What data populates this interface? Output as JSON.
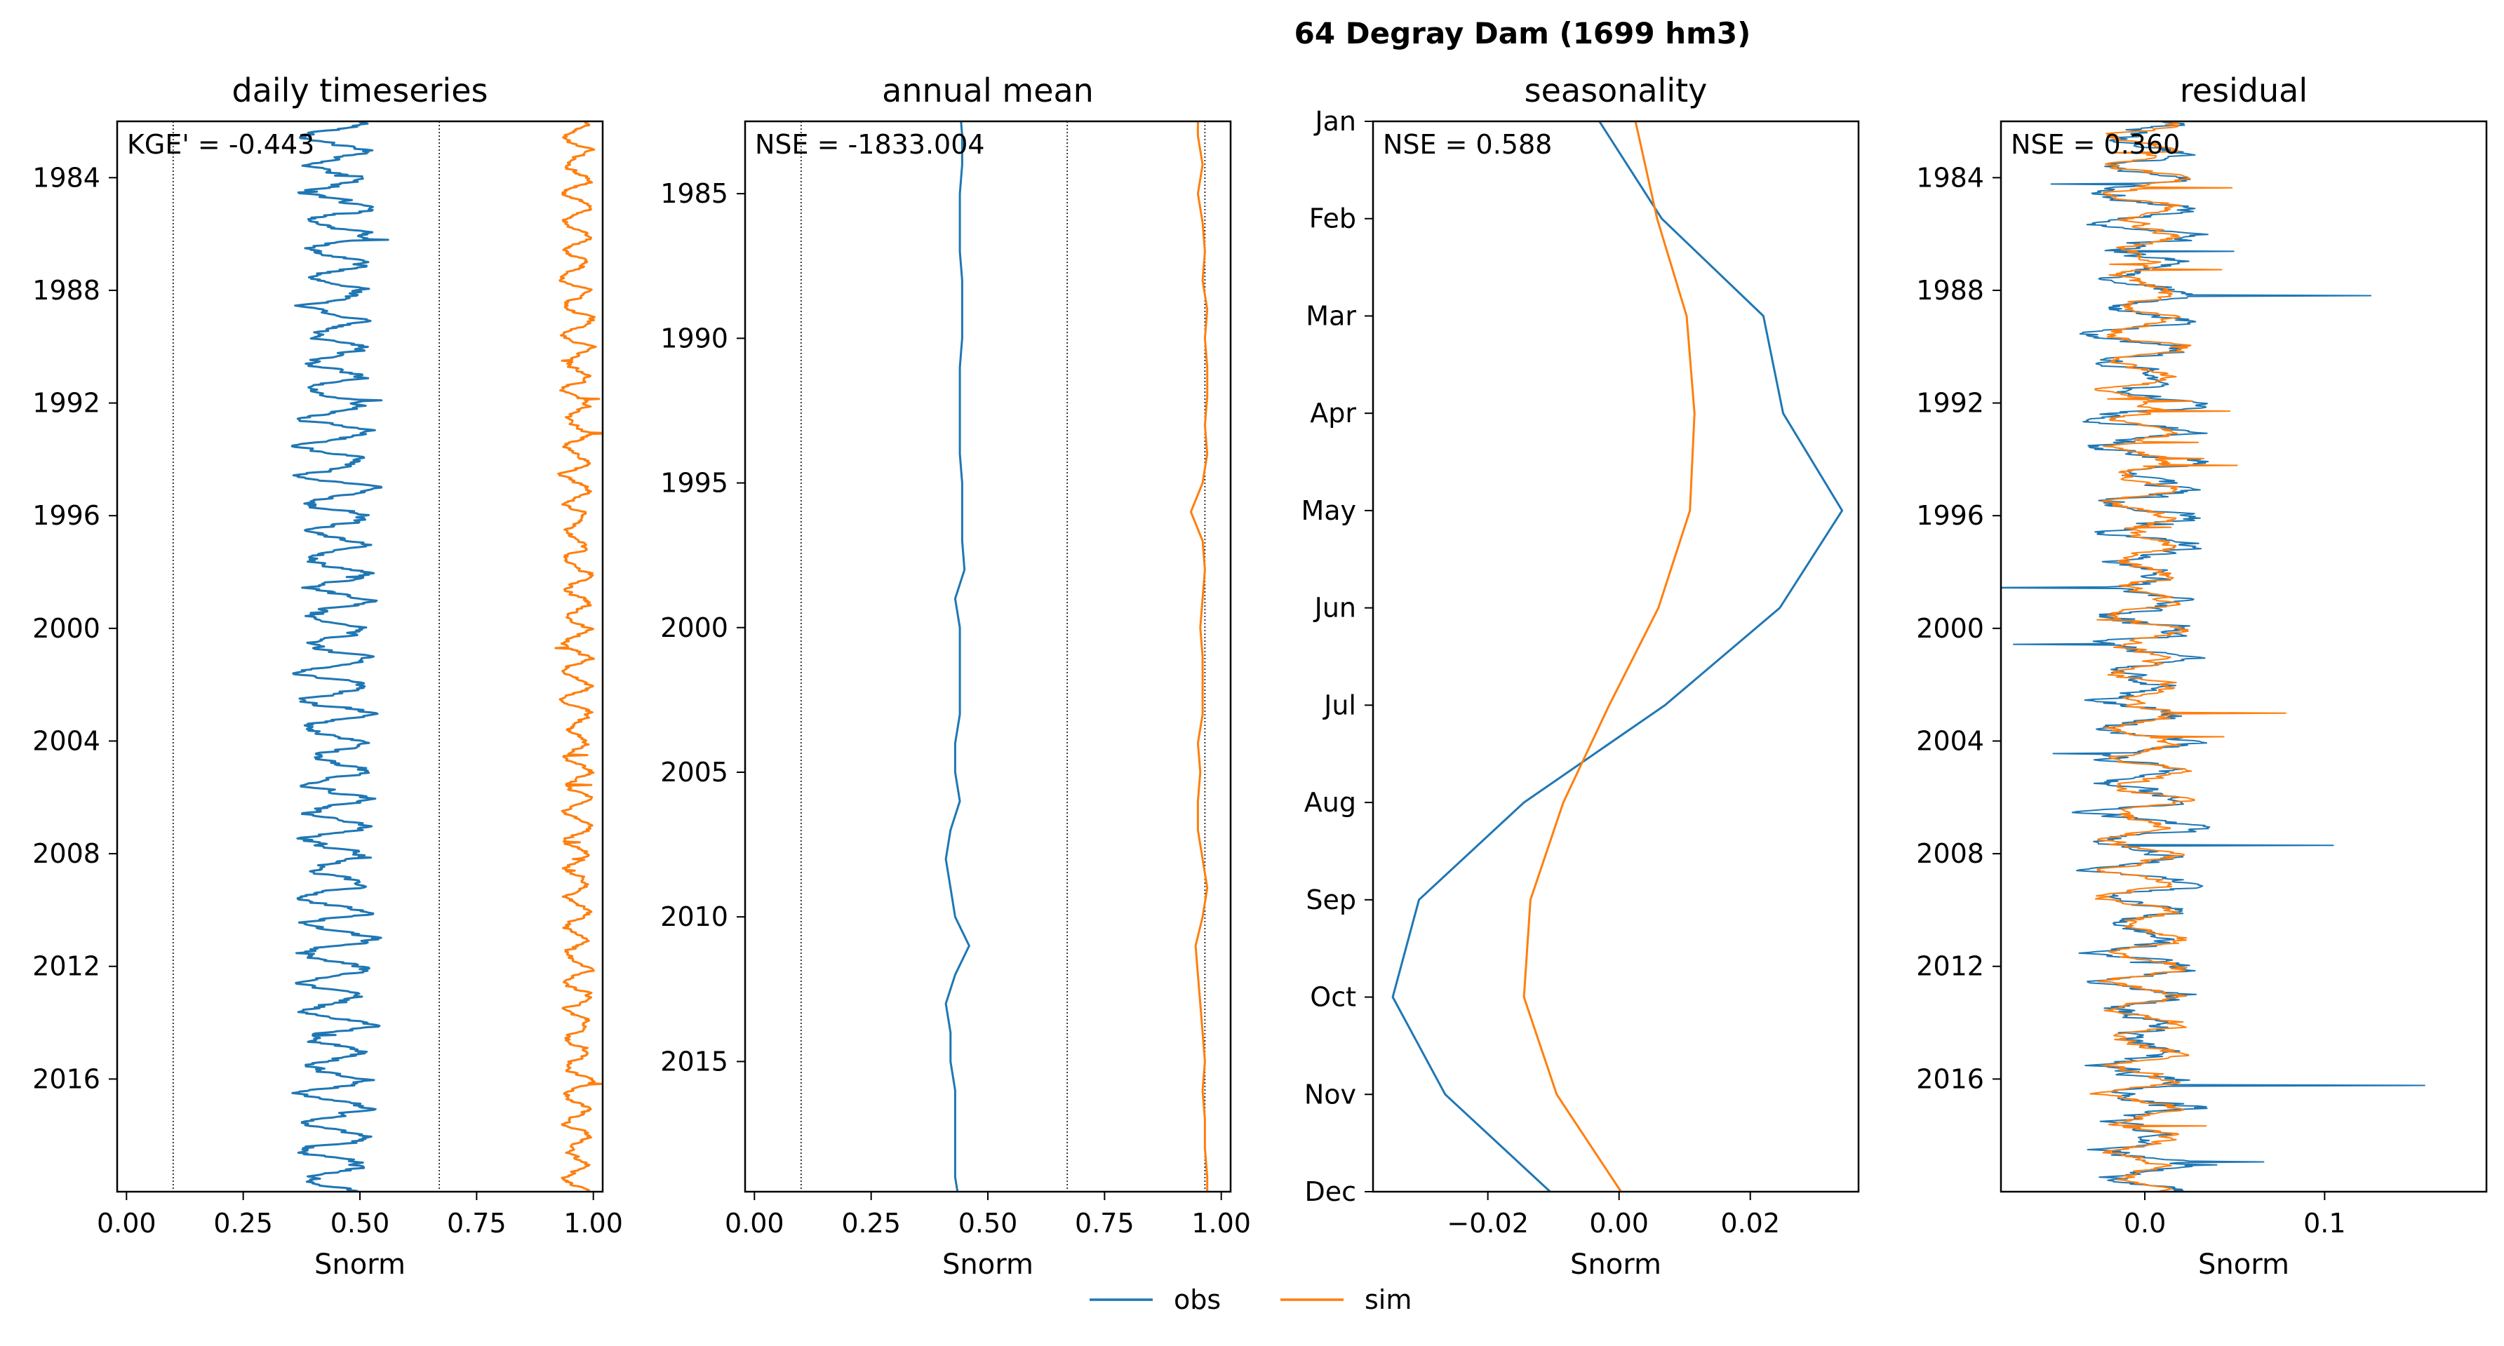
{
  "figure": {
    "suptitle": "64  Degray Dam (1699 hm3)",
    "legend": {
      "placement": "bottom-center",
      "entries": [
        "obs",
        "sim"
      ]
    },
    "colors": {
      "obs": "#1f77b4",
      "sim": "#ff7f0e",
      "reference": "#000000"
    }
  },
  "chart_data": [
    {
      "type": "line",
      "title": "daily timeseries",
      "xlabel": "Snorm",
      "ylabel": "",
      "annotation": "KGE' = -0.443",
      "xlim": [
        -0.02,
        1.02
      ],
      "ylim": [
        2020.0,
        1982.0
      ],
      "xticks": [
        0.0,
        0.25,
        0.5,
        0.75,
        1.0
      ],
      "xtick_labels": [
        "0.00",
        "0.25",
        "0.50",
        "0.75",
        "1.00"
      ],
      "yticks": [
        1984,
        1988,
        1992,
        1996,
        2000,
        2004,
        2008,
        2012,
        2016
      ],
      "ytick_labels": [
        "1984",
        "1988",
        "1992",
        "1996",
        "2000",
        "2004",
        "2008",
        "2012",
        "2016"
      ],
      "reference_lines_x": [
        0.1,
        0.67
      ],
      "grid": false,
      "series": [
        {
          "name": "obs",
          "center": 0.45,
          "amp": 0.06,
          "noise": 0.035,
          "spikes": 0.07
        },
        {
          "name": "sim",
          "center": 0.965,
          "amp": 0.025,
          "noise": 0.015,
          "spikes": 0.05
        }
      ]
    },
    {
      "type": "line",
      "title": "annual mean",
      "xlabel": "Snorm",
      "ylabel": "",
      "annotation": "NSE = -1833.004",
      "xlim": [
        -0.02,
        1.02
      ],
      "ylim": [
        2019.5,
        1982.5
      ],
      "xticks": [
        0.0,
        0.25,
        0.5,
        0.75,
        1.0
      ],
      "xtick_labels": [
        "0.00",
        "0.25",
        "0.50",
        "0.75",
        "1.00"
      ],
      "yticks": [
        1985,
        1990,
        1995,
        2000,
        2005,
        2010,
        2015
      ],
      "ytick_labels": [
        "1985",
        "1990",
        "1995",
        "2000",
        "2005",
        "2010",
        "2015"
      ],
      "reference_lines_x": [
        0.1,
        0.67,
        0.965
      ],
      "grid": false,
      "series": [
        {
          "name": "obs",
          "x": [
            0.44,
            0.445,
            0.445,
            0.44,
            0.44,
            0.44,
            0.445,
            0.445,
            0.445,
            0.44,
            0.44,
            0.44,
            0.44,
            0.445,
            0.445,
            0.445,
            0.45,
            0.43,
            0.44,
            0.44,
            0.44,
            0.44,
            0.43,
            0.43,
            0.44,
            0.42,
            0.41,
            0.42,
            0.43,
            0.46,
            0.43,
            0.41,
            0.42,
            0.42,
            0.43,
            0.43,
            0.43,
            0.43,
            0.44
          ],
          "y": [
            1982,
            1983,
            1984,
            1985,
            1986,
            1987,
            1988,
            1989,
            1990,
            1991,
            1992,
            1993,
            1994,
            1995,
            1996,
            1997,
            1998,
            1999,
            2000,
            2001,
            2002,
            2003,
            2004,
            2005,
            2006,
            2007,
            2008,
            2009,
            2010,
            2011,
            2012,
            2013,
            2014,
            2015,
            2016,
            2017,
            2018,
            2019,
            2020
          ]
        },
        {
          "name": "sim",
          "x": [
            0.95,
            0.95,
            0.96,
            0.95,
            0.96,
            0.965,
            0.96,
            0.97,
            0.965,
            0.97,
            0.97,
            0.965,
            0.97,
            0.96,
            0.935,
            0.96,
            0.965,
            0.96,
            0.955,
            0.96,
            0.96,
            0.96,
            0.95,
            0.955,
            0.95,
            0.95,
            0.96,
            0.97,
            0.96,
            0.945,
            0.95,
            0.955,
            0.96,
            0.965,
            0.96,
            0.965,
            0.965,
            0.97,
            0.97
          ],
          "y": [
            1982,
            1983,
            1984,
            1985,
            1986,
            1987,
            1988,
            1989,
            1990,
            1991,
            1992,
            1993,
            1994,
            1995,
            1996,
            1997,
            1998,
            1999,
            2000,
            2001,
            2002,
            2003,
            2004,
            2005,
            2006,
            2007,
            2008,
            2009,
            2010,
            2011,
            2012,
            2013,
            2014,
            2015,
            2016,
            2017,
            2018,
            2019,
            2020
          ]
        }
      ]
    },
    {
      "type": "line",
      "title": "seasonality",
      "xlabel": "Snorm",
      "ylabel": "",
      "annotation": "NSE = 0.588",
      "xlim": [
        -0.0375,
        0.0365
      ],
      "ylim": [
        11,
        0
      ],
      "xticks": [
        -0.02,
        0.0,
        0.02
      ],
      "xtick_labels": [
        "−0.02",
        "0.00",
        "0.02"
      ],
      "yticks": [
        0,
        1,
        2,
        3,
        4,
        5,
        6,
        7,
        8,
        9,
        10,
        11
      ],
      "ytick_labels": [
        "Jan",
        "Feb",
        "Mar",
        "Apr",
        "May",
        "Jun",
        "Jul",
        "Aug",
        "Sep",
        "Oct",
        "Nov",
        "Dec"
      ],
      "reference_lines_x": [],
      "grid": false,
      "series": [
        {
          "name": "obs",
          "x": [
            -0.003,
            0.0065,
            0.022,
            0.025,
            0.034,
            0.0245,
            0.007,
            -0.0145,
            -0.0305,
            -0.0345,
            -0.0265,
            -0.0105
          ],
          "y": [
            0,
            1,
            2,
            3,
            4,
            5,
            6,
            7,
            8,
            9,
            10,
            11
          ]
        },
        {
          "name": "sim",
          "x": [
            0.0025,
            0.0058,
            0.0103,
            0.0115,
            0.0108,
            0.006,
            -0.0015,
            -0.0085,
            -0.0135,
            -0.0145,
            -0.0095,
            0.0003
          ],
          "y": [
            0,
            1,
            2,
            3,
            4,
            5,
            6,
            7,
            8,
            9,
            10,
            11
          ]
        }
      ]
    },
    {
      "type": "line",
      "title": "residual",
      "xlabel": "Snorm",
      "ylabel": "",
      "annotation": "NSE = 0.360",
      "xlim": [
        -0.08,
        0.19
      ],
      "ylim": [
        2020.0,
        1982.0
      ],
      "xticks": [
        0.0,
        0.1
      ],
      "xtick_labels": [
        "0.0",
        "0.1"
      ],
      "yticks": [
        1984,
        1988,
        1992,
        1996,
        2000,
        2004,
        2008,
        2012,
        2016
      ],
      "ytick_labels": [
        "1984",
        "1988",
        "1992",
        "1996",
        "2000",
        "2004",
        "2008",
        "2012",
        "2016"
      ],
      "reference_lines_x": [],
      "grid": false,
      "series": [
        {
          "name": "obs",
          "center": 0.0,
          "amp": 0.02,
          "noise": 0.018,
          "spikes": 0.16
        },
        {
          "name": "sim",
          "center": 0.0,
          "amp": 0.015,
          "noise": 0.012,
          "spikes": 0.07
        }
      ]
    }
  ]
}
